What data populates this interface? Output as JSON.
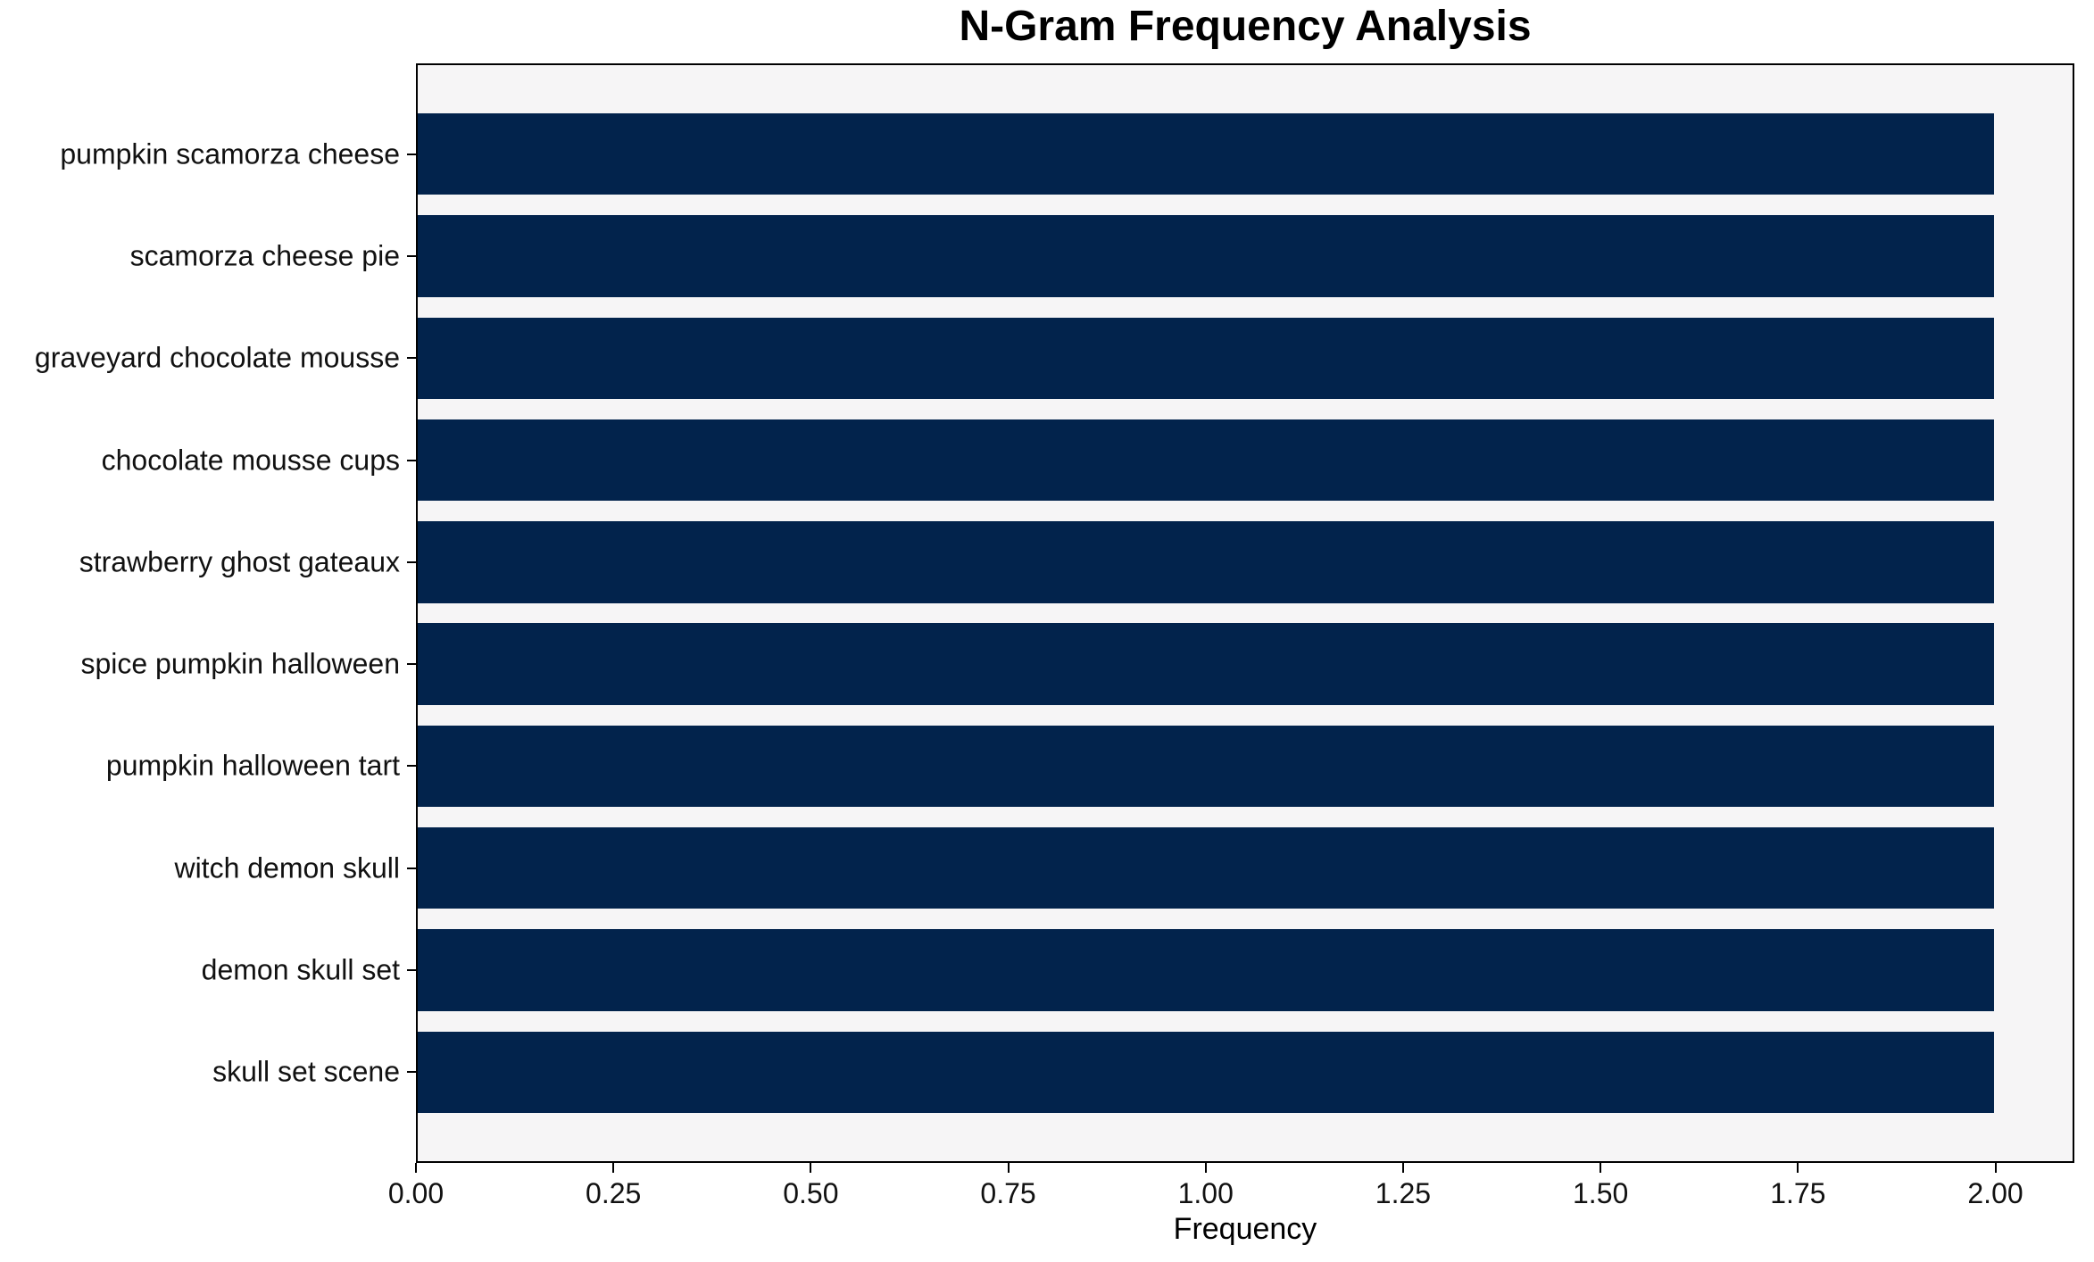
{
  "chart_data": {
    "type": "bar",
    "orientation": "horizontal",
    "title": "N-Gram Frequency Analysis",
    "xlabel": "Frequency",
    "ylabel": "",
    "categories": [
      "pumpkin scamorza cheese",
      "scamorza cheese pie",
      "graveyard chocolate mousse",
      "chocolate mousse cups",
      "strawberry ghost gateaux",
      "spice pumpkin halloween",
      "pumpkin halloween tart",
      "witch demon skull",
      "demon skull set",
      "skull set scene"
    ],
    "values": [
      2,
      2,
      2,
      2,
      2,
      2,
      2,
      2,
      2,
      2
    ],
    "xlim": [
      0,
      2.1
    ],
    "xticks": [
      0,
      0.25,
      0.5,
      0.75,
      1,
      1.25,
      1.5,
      1.75,
      2
    ],
    "xtick_labels": [
      "0.00",
      "0.25",
      "0.50",
      "0.75",
      "1.00",
      "1.25",
      "1.50",
      "1.75",
      "2.00"
    ],
    "grid": false,
    "legend": "none",
    "bar_height_fraction": 0.8,
    "colors": {
      "bar": "#02234c",
      "plot_background": "#f6f5f6",
      "figure_background": "#ffffff",
      "spine": "#000000",
      "text": "#000000"
    }
  }
}
